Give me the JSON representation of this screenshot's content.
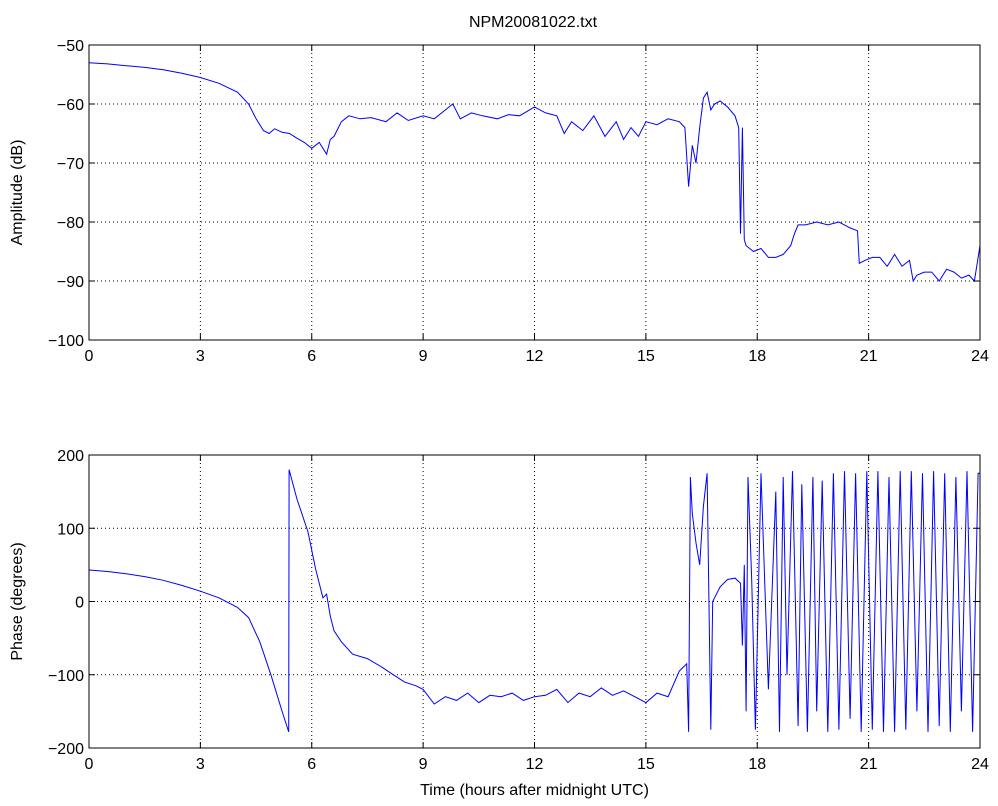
{
  "figure": {
    "title": "NPM20081022.txt"
  },
  "colors": {
    "line": "#0000ff",
    "axis": "#000000",
    "grid": "#000000",
    "background": "#ffffff"
  },
  "chart_data": [
    {
      "type": "line",
      "title": "NPM20081022.txt",
      "xlabel": "",
      "ylabel": "Amplitude (dB)",
      "xlim": [
        0,
        24
      ],
      "ylim": [
        -100,
        -50
      ],
      "xticks": [
        0,
        3,
        6,
        9,
        12,
        15,
        18,
        21,
        24
      ],
      "yticks": [
        -50,
        -60,
        -70,
        -80,
        -90,
        -100
      ],
      "ytick_labels": [
        "−50",
        "−60",
        "−70",
        "−80",
        "−90",
        "−100"
      ],
      "grid": true,
      "series": [
        {
          "x": [
            0,
            0.5,
            1,
            1.5,
            2,
            2.5,
            3,
            3.5,
            4,
            4.3,
            4.5,
            4.7,
            4.85,
            5.0,
            5.2,
            5.4,
            5.6,
            5.8,
            6.0,
            6.2,
            6.4,
            6.5,
            6.6,
            6.8,
            7.0,
            7.3,
            7.6,
            8.0,
            8.3,
            8.6,
            9.0,
            9.3,
            9.6,
            9.8,
            10.0,
            10.3,
            10.6,
            11.0,
            11.3,
            11.6,
            12.0,
            12.3,
            12.6,
            12.8,
            13.0,
            13.3,
            13.6,
            13.9,
            14.2,
            14.4,
            14.6,
            14.8,
            15.0,
            15.3,
            15.6,
            15.9,
            16.05,
            16.15,
            16.25,
            16.35,
            16.45,
            16.55,
            16.65,
            16.75,
            16.85,
            17.0,
            17.2,
            17.4,
            17.5,
            17.55,
            17.6,
            17.65,
            17.7,
            17.9,
            18.1,
            18.3,
            18.5,
            18.7,
            18.9,
            19.0,
            19.1,
            19.3,
            19.6,
            19.9,
            20.2,
            20.5,
            20.7,
            20.75,
            20.9,
            21.1,
            21.3,
            21.5,
            21.7,
            21.9,
            22.1,
            22.2,
            22.3,
            22.5,
            22.7,
            22.9,
            23.1,
            23.3,
            23.5,
            23.7,
            23.85,
            24
          ],
          "y": [
            -53,
            -53.2,
            -53.5,
            -53.8,
            -54.2,
            -54.8,
            -55.5,
            -56.5,
            -58,
            -60,
            -62.5,
            -64.5,
            -65,
            -64.2,
            -64.8,
            -65,
            -65.8,
            -66.5,
            -67.5,
            -66.5,
            -68.5,
            -66,
            -65.5,
            -63,
            -62,
            -62.5,
            -62.3,
            -63,
            -61.5,
            -62.8,
            -62,
            -62.5,
            -61,
            -60,
            -62.5,
            -61.5,
            -62,
            -62.5,
            -61.8,
            -62,
            -60.5,
            -61.5,
            -62,
            -65,
            -63,
            -64.5,
            -62,
            -65.5,
            -63,
            -66,
            -64,
            -65.5,
            -63,
            -63.5,
            -62.5,
            -63,
            -64,
            -74,
            -67,
            -70,
            -64,
            -59,
            -58,
            -61,
            -60,
            -59.5,
            -60.5,
            -62,
            -64,
            -82,
            -64,
            -83,
            -84,
            -85,
            -84.5,
            -86,
            -86,
            -85.5,
            -84,
            -82,
            -80.5,
            -80.5,
            -80,
            -80.5,
            -80,
            -81,
            -81.5,
            -87,
            -86.5,
            -86,
            -86,
            -87.5,
            -85.5,
            -87.5,
            -86.5,
            -90,
            -89,
            -88.5,
            -88.5,
            -90,
            -88,
            -88.5,
            -89.5,
            -89,
            -90,
            -84
          ]
        }
      ]
    },
    {
      "type": "line",
      "title": "",
      "xlabel": "Time (hours after midnight UTC)",
      "ylabel": "Phase (degrees)",
      "xlim": [
        0,
        24
      ],
      "ylim": [
        -200,
        200
      ],
      "xticks": [
        0,
        3,
        6,
        9,
        12,
        15,
        18,
        21,
        24
      ],
      "yticks": [
        200,
        100,
        0,
        -100,
        -200
      ],
      "ytick_labels": [
        "200",
        "100",
        "0",
        "−100",
        "−200"
      ],
      "grid": true,
      "series": [
        {
          "x": [
            0,
            0.5,
            1,
            1.5,
            2,
            2.5,
            3,
            3.5,
            4,
            4.3,
            4.6,
            4.9,
            5.2,
            5.38,
            5.39,
            5.6,
            5.9,
            6.1,
            6.3,
            6.4,
            6.5,
            6.6,
            6.8,
            7.1,
            7.5,
            7.9,
            8.2,
            8.5,
            8.8,
            9.0,
            9.3,
            9.6,
            9.9,
            10.2,
            10.5,
            10.8,
            11.1,
            11.4,
            11.7,
            12.0,
            12.3,
            12.6,
            12.9,
            13.2,
            13.5,
            13.8,
            14.1,
            14.4,
            14.7,
            15.0,
            15.3,
            15.6,
            15.9,
            16.1,
            16.15,
            16.2,
            16.25,
            16.35,
            16.45,
            16.55,
            16.65,
            16.75,
            16.8,
            16.9,
            17.0,
            17.2,
            17.4,
            17.55,
            17.6,
            17.65,
            17.7,
            17.75,
            17.85,
            17.95,
            18.1,
            18.3,
            18.5,
            18.6,
            18.7,
            18.8,
            18.95,
            19.1,
            19.2,
            19.35,
            19.5,
            19.6,
            19.75,
            19.9,
            20.05,
            20.2,
            20.35,
            20.5,
            20.65,
            20.8,
            20.95,
            21.1,
            21.25,
            21.4,
            21.55,
            21.7,
            21.85,
            22.0,
            22.15,
            22.3,
            22.45,
            22.6,
            22.75,
            22.9,
            23.05,
            23.2,
            23.35,
            23.5,
            23.65,
            23.8,
            23.95,
            24
          ],
          "y": [
            43,
            41,
            38,
            34,
            29,
            22,
            14,
            5,
            -8,
            -22,
            -55,
            -100,
            -150,
            -178,
            180,
            140,
            95,
            45,
            5,
            10,
            -20,
            -40,
            -55,
            -72,
            -78,
            -90,
            -100,
            -110,
            -115,
            -120,
            -140,
            -130,
            -135,
            -125,
            -138,
            -128,
            -130,
            -125,
            -135,
            -130,
            -128,
            -120,
            -138,
            -125,
            -130,
            -118,
            -128,
            -122,
            -130,
            -138,
            -125,
            -130,
            -95,
            -85,
            -178,
            170,
            120,
            80,
            50,
            130,
            175,
            -175,
            0,
            10,
            20,
            30,
            32,
            25,
            -60,
            50,
            -150,
            170,
            30,
            -175,
            175,
            -120,
            150,
            -178,
            170,
            -100,
            178,
            -170,
            160,
            -178,
            170,
            -150,
            165,
            -178,
            175,
            -175,
            178,
            -160,
            175,
            -178,
            178,
            -175,
            178,
            -178,
            170,
            -178,
            178,
            -175,
            178,
            -150,
            175,
            -178,
            178,
            -170,
            175,
            -178,
            170,
            -150,
            178,
            -178,
            175,
            175
          ]
        }
      ]
    }
  ]
}
